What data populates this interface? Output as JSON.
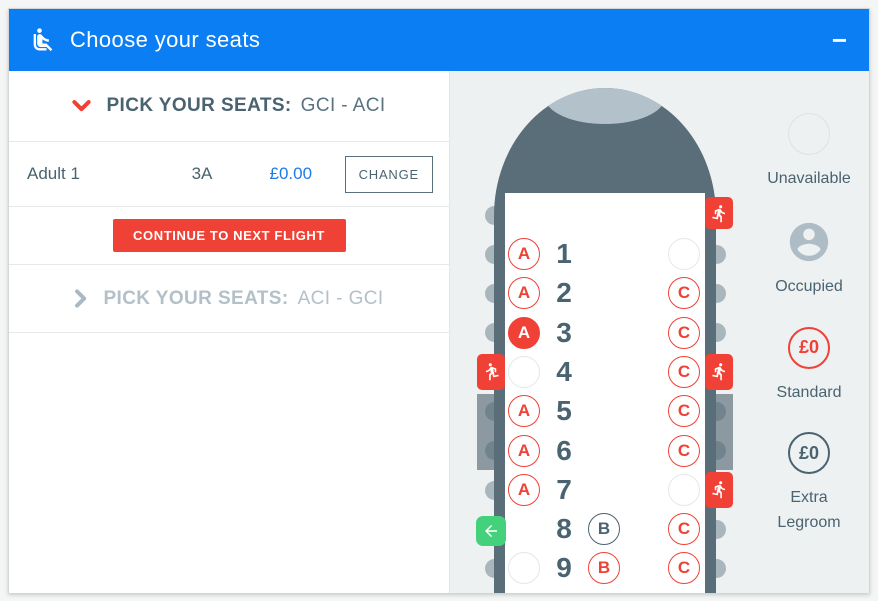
{
  "header": {
    "title": "Choose your seats",
    "icon": "seat-person-icon",
    "collapse_glyph": "−"
  },
  "left": {
    "sections": [
      {
        "state": "expanded",
        "title": "PICK YOUR SEATS:",
        "route": "GCI - ACI"
      },
      {
        "state": "collapsed",
        "title": "PICK YOUR SEATS:",
        "route": "ACI - GCI"
      }
    ],
    "passenger": {
      "name": "Adult 1",
      "seat": "3A",
      "price": "£0.00",
      "change_label": "CHANGE"
    },
    "continue_label": "CONTINUE TO NEXT FLIGHT"
  },
  "seatmap": {
    "route": "GCI - ACI",
    "columns": [
      "A",
      "B",
      "C"
    ],
    "rows": [
      {
        "number": "1",
        "a": "standard",
        "b": "none",
        "c": "unavailable"
      },
      {
        "number": "2",
        "a": "standard",
        "b": "none",
        "c": "standard"
      },
      {
        "number": "3",
        "a": "selected",
        "b": "none",
        "c": "standard"
      },
      {
        "number": "4",
        "a": "unavailable",
        "b": "none",
        "c": "standard"
      },
      {
        "number": "5",
        "a": "standard",
        "b": "none",
        "c": "standard"
      },
      {
        "number": "6",
        "a": "standard",
        "b": "none",
        "c": "standard"
      },
      {
        "number": "7",
        "a": "standard",
        "b": "none",
        "c": "unavailable"
      },
      {
        "number": "8",
        "a": "none",
        "b": "extra",
        "c": "standard"
      },
      {
        "number": "9",
        "a": "unavailable",
        "b": "standard",
        "c": "standard"
      }
    ],
    "selected_seat": "3A",
    "exits": [
      {
        "icon": "exit-runner-icon",
        "side": "right",
        "row": 0
      },
      {
        "icon": "exit-runner-icon",
        "side": "left",
        "row": 4
      },
      {
        "icon": "exit-runner-icon",
        "side": "right",
        "row": 4
      },
      {
        "icon": "exit-runner-icon",
        "side": "right",
        "row": 7
      },
      {
        "icon": "boarding-arrow-icon",
        "side": "left",
        "row": 8
      }
    ]
  },
  "legend": {
    "items": [
      {
        "id": "unavailable",
        "label": "Unavailable"
      },
      {
        "id": "occupied",
        "label": "Occupied"
      },
      {
        "id": "standard",
        "label": "Standard",
        "price": "£0"
      },
      {
        "id": "extra-legroom",
        "label": "Extra Legroom",
        "price": "£0"
      }
    ]
  },
  "colors": {
    "header_blue": "#0b7ef4",
    "red": "#ef4135",
    "green": "#43d17c",
    "slate": "#4a6370",
    "fuselage": "#5a6e7a",
    "fuselage_light": "#b3c1ca",
    "wing": "#8d99a1",
    "occupied_gray": "#aebcc6",
    "panel_bg": "#eef1f2",
    "price_blue": "#1e7ce8",
    "unavailable_border": "#e4e8ea",
    "muted": "#b3c0c8"
  }
}
